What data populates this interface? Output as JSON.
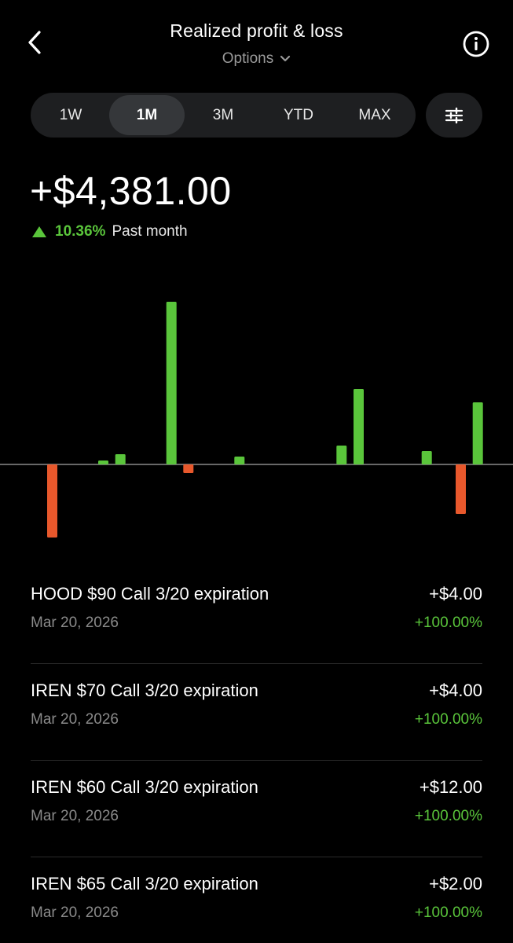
{
  "header": {
    "title": "Realized profit & loss",
    "subtitle": "Options"
  },
  "ranges": [
    {
      "label": "1W",
      "active": false
    },
    {
      "label": "1M",
      "active": true
    },
    {
      "label": "3M",
      "active": false
    },
    {
      "label": "YTD",
      "active": false
    },
    {
      "label": "MAX",
      "active": false
    }
  ],
  "summary": {
    "total": "+$4,381.00",
    "change_pct": "10.36%",
    "period": "Past month"
  },
  "colors": {
    "positive": "#5ac53b",
    "negative": "#e8582c",
    "baseline": "#8a8a8a"
  },
  "chart_data": {
    "type": "bar",
    "note_values_relative": true,
    "values": [
      -930,
      50,
      130,
      2070,
      -110,
      100,
      240,
      960,
      170,
      -630,
      790
    ],
    "positions": [
      1,
      4,
      5,
      8,
      9,
      12,
      18,
      19,
      23,
      25,
      26
    ],
    "slot_count": 27
  },
  "trades": [
    {
      "title": "HOOD $90 Call 3/20 expiration",
      "date": "Mar 20, 2026",
      "amount": "+$4.00",
      "pct": "+100.00%"
    },
    {
      "title": "IREN $70 Call 3/20 expiration",
      "date": "Mar 20, 2026",
      "amount": "+$4.00",
      "pct": "+100.00%"
    },
    {
      "title": "IREN $60 Call 3/20 expiration",
      "date": "Mar 20, 2026",
      "amount": "+$12.00",
      "pct": "+100.00%"
    },
    {
      "title": "IREN $65 Call 3/20 expiration",
      "date": "Mar 20, 2026",
      "amount": "+$2.00",
      "pct": "+100.00%"
    }
  ]
}
